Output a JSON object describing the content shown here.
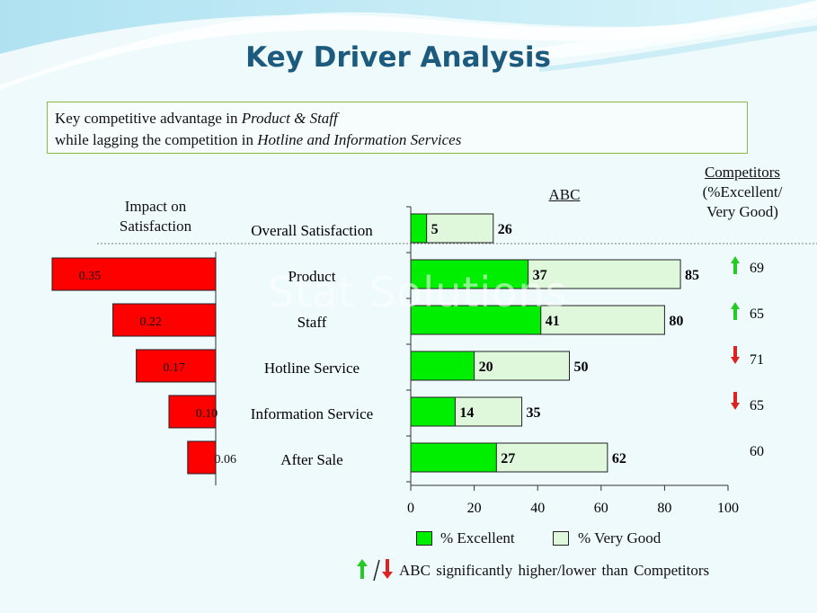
{
  "title": "Key Driver Analysis",
  "subtitle": {
    "line1_prefix": "Key competitive advantage in ",
    "line1_em": "Product & Staff",
    "line2_prefix": "while lagging the competition in ",
    "line2_em": "Hotline and Information Services"
  },
  "headers": {
    "impact_line1": "Impact on",
    "impact_line2": "Satisfaction",
    "abc": "ABC",
    "competitors_line1": "Competitors",
    "competitors_line2": "(%Excellent/",
    "competitors_line3": "Very Good)"
  },
  "legend": {
    "excellent": "% Excellent",
    "very_good": "% Very Good"
  },
  "footnote": "ABC significantly higher/lower than Competitors",
  "watermark": "Stat Solutions",
  "colors": {
    "excellent": "#00ee00",
    "very_good": "#dff8dc",
    "impact": "#ff0000",
    "arrow_up": "#22cc22",
    "arrow_down": "#dd2222",
    "title": "#1c5a7e"
  },
  "chart_data": {
    "type": "bar",
    "categories": [
      "Overall Satisfaction",
      "Product",
      "Staff",
      "Hotline Service",
      "Information Service",
      "After Sale"
    ],
    "impact_labels": [
      "",
      "0.35",
      "0.22",
      "0.17",
      "0.10",
      "0.06"
    ],
    "impact": [
      null,
      0.35,
      0.22,
      0.17,
      0.1,
      0.06
    ],
    "series": [
      {
        "name": "% Excellent",
        "values": [
          5,
          37,
          41,
          20,
          14,
          27
        ]
      },
      {
        "name": "% Very Good",
        "values": [
          26,
          85,
          80,
          50,
          35,
          62
        ]
      }
    ],
    "competitors": [
      "",
      "69",
      "65",
      "71",
      "65",
      "60"
    ],
    "competitor_arrows": [
      "",
      "up",
      "up",
      "down",
      "down",
      ""
    ],
    "xlim": [
      0,
      100
    ],
    "xticks": [
      "0",
      "20",
      "40",
      "60",
      "80",
      "100"
    ]
  }
}
